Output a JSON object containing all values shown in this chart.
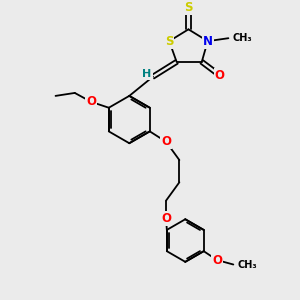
{
  "bg_color": "#ebebeb",
  "atom_colors": {
    "S": "#cccc00",
    "N": "#0000ee",
    "O": "#ff0000",
    "H": "#008080",
    "C": "#000000"
  },
  "bond_color": "#000000",
  "bond_width": 1.3
}
